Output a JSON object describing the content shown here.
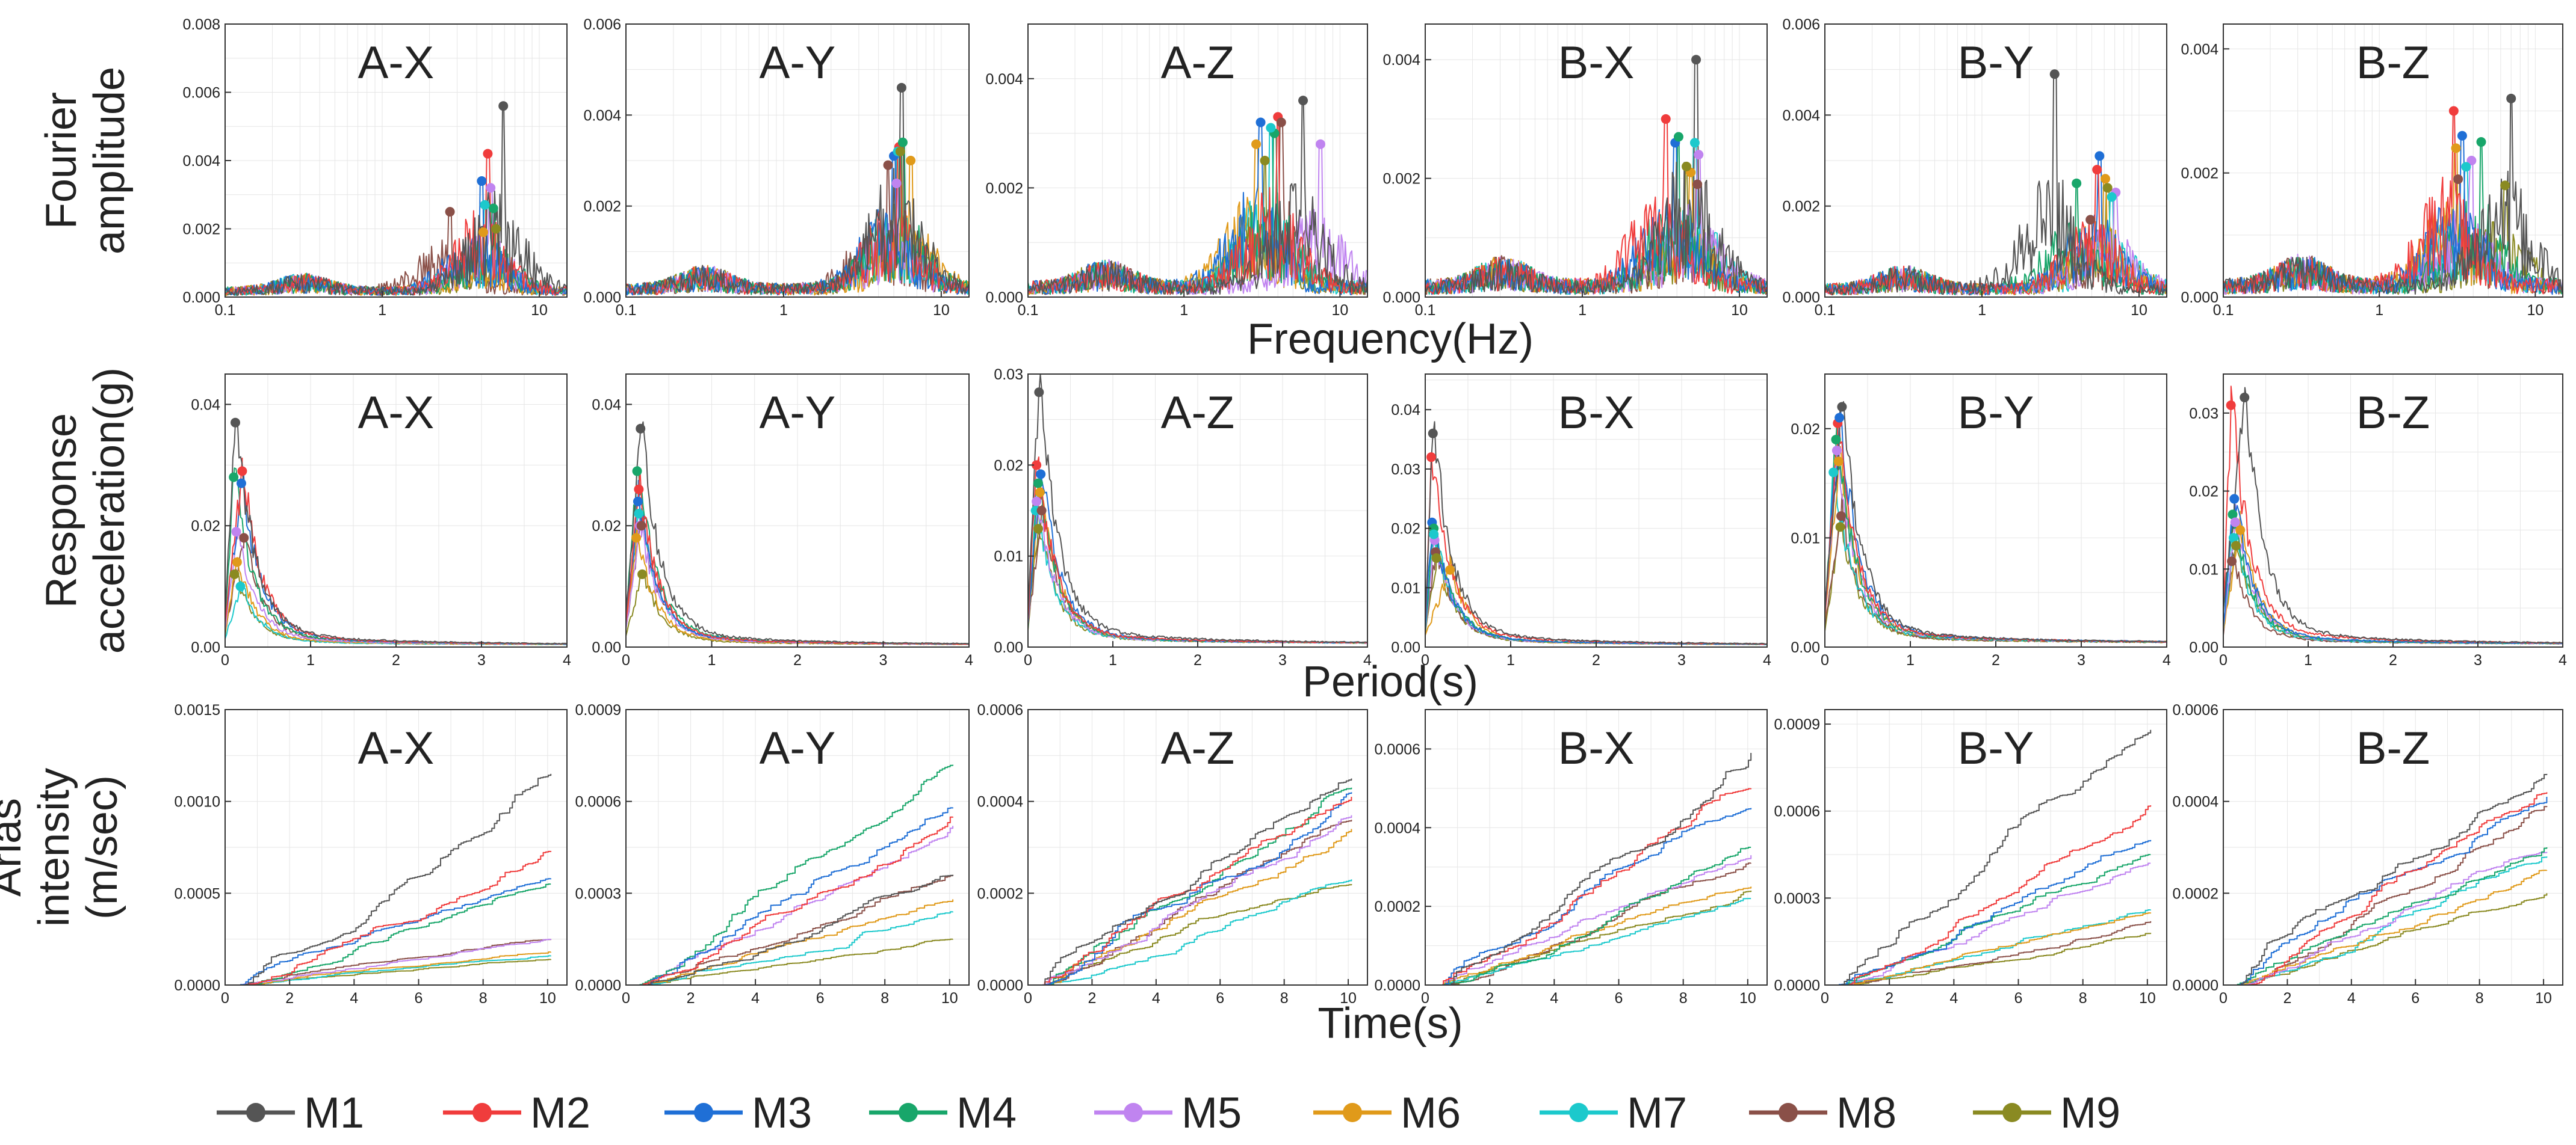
{
  "figure": {
    "panel_names": [
      "A-X",
      "A-Y",
      "A-Z",
      "B-X",
      "B-Y",
      "B-Z"
    ],
    "series_names": [
      "M1",
      "M2",
      "M3",
      "M4",
      "M5",
      "M6",
      "M7",
      "M8",
      "M9"
    ],
    "series_colors": [
      "#555555",
      "#f03c3c",
      "#1f6fd6",
      "#18a66a",
      "#c084f0",
      "#e09a1a",
      "#1cc9cc",
      "#8a5048",
      "#8a8a22"
    ]
  },
  "chart_data": [
    {
      "type": "line",
      "row_label": [
        "Fourier",
        "amplitude"
      ],
      "xlabel": "Frequency(Hz)",
      "xscale": "log",
      "xlim": [
        0.1,
        15
      ],
      "xticks": [
        0.1,
        1,
        10
      ],
      "xtick_labels": [
        "0.1",
        "1",
        "10"
      ],
      "panels": [
        {
          "name": "A-X",
          "ylim": [
            0,
            0.008
          ],
          "yticks": [
            "0.000",
            "0.002",
            "0.004",
            "0.006",
            "0.008"
          ],
          "peaks": [
            {
              "x": 5.9,
              "y": 0.0056
            },
            {
              "x": 4.7,
              "y": 0.0042
            },
            {
              "x": 4.3,
              "y": 0.0034
            },
            {
              "x": 5.1,
              "y": 0.0026
            },
            {
              "x": 4.9,
              "y": 0.0032
            },
            {
              "x": 4.4,
              "y": 0.0019
            },
            {
              "x": 4.5,
              "y": 0.0027
            },
            {
              "x": 2.7,
              "y": 0.0025
            },
            {
              "x": 5.3,
              "y": 0.002
            }
          ]
        },
        {
          "name": "A-Y",
          "ylim": [
            0,
            0.006
          ],
          "yticks": [
            "0.000",
            "0.002",
            "0.004",
            "0.006"
          ],
          "peaks": [
            {
              "x": 5.6,
              "y": 0.0046
            },
            {
              "x": 5.4,
              "y": 0.0033
            },
            {
              "x": 5.0,
              "y": 0.0031
            },
            {
              "x": 5.7,
              "y": 0.0034
            },
            {
              "x": 5.2,
              "y": 0.0025
            },
            {
              "x": 6.4,
              "y": 0.003
            },
            {
              "x": 5.3,
              "y": 0.0032
            },
            {
              "x": 4.6,
              "y": 0.0029
            },
            {
              "x": 5.5,
              "y": 0.0032
            }
          ]
        },
        {
          "name": "A-Z",
          "ylim": [
            0,
            0.005
          ],
          "yticks": [
            "0.000",
            "0.002",
            "0.004"
          ],
          "peaks": [
            {
              "x": 5.8,
              "y": 0.0036
            },
            {
              "x": 4.0,
              "y": 0.0033
            },
            {
              "x": 3.1,
              "y": 0.0032
            },
            {
              "x": 3.8,
              "y": 0.003
            },
            {
              "x": 7.5,
              "y": 0.0028
            },
            {
              "x": 2.9,
              "y": 0.0028
            },
            {
              "x": 3.6,
              "y": 0.0031
            },
            {
              "x": 4.2,
              "y": 0.0032
            },
            {
              "x": 3.3,
              "y": 0.0025
            }
          ]
        },
        {
          "name": "B-X",
          "ylim": [
            0,
            0.0046
          ],
          "yticks": [
            "0.000",
            "0.002",
            "0.004"
          ],
          "peaks": [
            {
              "x": 5.3,
              "y": 0.004
            },
            {
              "x": 3.4,
              "y": 0.003
            },
            {
              "x": 3.9,
              "y": 0.0026
            },
            {
              "x": 4.1,
              "y": 0.0027
            },
            {
              "x": 5.5,
              "y": 0.0024
            },
            {
              "x": 4.9,
              "y": 0.0021
            },
            {
              "x": 5.2,
              "y": 0.0026
            },
            {
              "x": 5.4,
              "y": 0.0019
            },
            {
              "x": 4.6,
              "y": 0.0022
            }
          ]
        },
        {
          "name": "B-Y",
          "ylim": [
            0,
            0.006
          ],
          "yticks": [
            "0.000",
            "0.002",
            "0.004",
            "0.006"
          ],
          "peaks": [
            {
              "x": 2.9,
              "y": 0.0049
            },
            {
              "x": 5.4,
              "y": 0.0028
            },
            {
              "x": 5.6,
              "y": 0.0031
            },
            {
              "x": 4.0,
              "y": 0.0025
            },
            {
              "x": 7.1,
              "y": 0.0023
            },
            {
              "x": 6.1,
              "y": 0.0026
            },
            {
              "x": 6.7,
              "y": 0.0022
            },
            {
              "x": 4.9,
              "y": 0.0017
            },
            {
              "x": 6.3,
              "y": 0.0024
            }
          ]
        },
        {
          "name": "B-Z",
          "ylim": [
            0,
            0.0044
          ],
          "yticks": [
            "0.000",
            "0.002",
            "0.004"
          ],
          "peaks": [
            {
              "x": 7.0,
              "y": 0.0032
            },
            {
              "x": 3.0,
              "y": 0.003
            },
            {
              "x": 3.4,
              "y": 0.0026
            },
            {
              "x": 4.5,
              "y": 0.0025
            },
            {
              "x": 3.9,
              "y": 0.0022
            },
            {
              "x": 3.1,
              "y": 0.0024
            },
            {
              "x": 3.6,
              "y": 0.0021
            },
            {
              "x": 3.2,
              "y": 0.0019
            },
            {
              "x": 6.4,
              "y": 0.0018
            }
          ]
        }
      ]
    },
    {
      "type": "line",
      "row_label": [
        "Response",
        "acceleration(g)"
      ],
      "xlabel": "Period(s)",
      "xscale": "linear",
      "xlim": [
        0,
        4
      ],
      "xticks": [
        0,
        1,
        2,
        3,
        4
      ],
      "xtick_labels": [
        "0",
        "1",
        "2",
        "3",
        "4"
      ],
      "panels": [
        {
          "name": "A-X",
          "ylim": [
            0,
            0.045
          ],
          "yticks": [
            "0.00",
            "0.02",
            "0.04"
          ],
          "peaks": [
            {
              "x": 0.12,
              "y": 0.037
            },
            {
              "x": 0.2,
              "y": 0.029
            },
            {
              "x": 0.19,
              "y": 0.027
            },
            {
              "x": 0.1,
              "y": 0.028
            },
            {
              "x": 0.13,
              "y": 0.019
            },
            {
              "x": 0.14,
              "y": 0.014
            },
            {
              "x": 0.18,
              "y": 0.01
            },
            {
              "x": 0.22,
              "y": 0.018
            },
            {
              "x": 0.11,
              "y": 0.012
            }
          ]
        },
        {
          "name": "A-Y",
          "ylim": [
            0,
            0.045
          ],
          "yticks": [
            "0.00",
            "0.02",
            "0.04"
          ],
          "peaks": [
            {
              "x": 0.17,
              "y": 0.036
            },
            {
              "x": 0.15,
              "y": 0.026
            },
            {
              "x": 0.14,
              "y": 0.024
            },
            {
              "x": 0.13,
              "y": 0.029
            },
            {
              "x": 0.16,
              "y": 0.02
            },
            {
              "x": 0.12,
              "y": 0.018
            },
            {
              "x": 0.15,
              "y": 0.022
            },
            {
              "x": 0.18,
              "y": 0.02
            },
            {
              "x": 0.19,
              "y": 0.012
            }
          ]
        },
        {
          "name": "A-Z",
          "ylim": [
            0,
            0.03
          ],
          "yticks": [
            "0.00",
            "0.01",
            "0.02",
            "0.03"
          ],
          "peaks": [
            {
              "x": 0.13,
              "y": 0.028
            },
            {
              "x": 0.1,
              "y": 0.02
            },
            {
              "x": 0.15,
              "y": 0.019
            },
            {
              "x": 0.12,
              "y": 0.018
            },
            {
              "x": 0.1,
              "y": 0.016
            },
            {
              "x": 0.14,
              "y": 0.017
            },
            {
              "x": 0.09,
              "y": 0.015
            },
            {
              "x": 0.16,
              "y": 0.015
            },
            {
              "x": 0.12,
              "y": 0.013
            }
          ]
        },
        {
          "name": "B-X",
          "ylim": [
            0,
            0.046
          ],
          "yticks": [
            "0.00",
            "0.01",
            "0.02",
            "0.03",
            "0.04"
          ],
          "peaks": [
            {
              "x": 0.09,
              "y": 0.036
            },
            {
              "x": 0.07,
              "y": 0.032
            },
            {
              "x": 0.08,
              "y": 0.021
            },
            {
              "x": 0.1,
              "y": 0.02
            },
            {
              "x": 0.11,
              "y": 0.018
            },
            {
              "x": 0.29,
              "y": 0.013
            },
            {
              "x": 0.1,
              "y": 0.019
            },
            {
              "x": 0.12,
              "y": 0.016
            },
            {
              "x": 0.13,
              "y": 0.015
            }
          ]
        },
        {
          "name": "B-Y",
          "ylim": [
            0,
            0.025
          ],
          "yticks": [
            "0.00",
            "0.01",
            "0.02"
          ],
          "peaks": [
            {
              "x": 0.2,
              "y": 0.022
            },
            {
              "x": 0.15,
              "y": 0.0205
            },
            {
              "x": 0.17,
              "y": 0.021
            },
            {
              "x": 0.13,
              "y": 0.019
            },
            {
              "x": 0.14,
              "y": 0.018
            },
            {
              "x": 0.16,
              "y": 0.017
            },
            {
              "x": 0.1,
              "y": 0.016
            },
            {
              "x": 0.19,
              "y": 0.012
            },
            {
              "x": 0.18,
              "y": 0.011
            }
          ]
        },
        {
          "name": "B-Z",
          "ylim": [
            0,
            0.035
          ],
          "yticks": [
            "0.00",
            "0.01",
            "0.02",
            "0.03"
          ],
          "peaks": [
            {
              "x": 0.25,
              "y": 0.032
            },
            {
              "x": 0.09,
              "y": 0.031
            },
            {
              "x": 0.13,
              "y": 0.019
            },
            {
              "x": 0.11,
              "y": 0.017
            },
            {
              "x": 0.14,
              "y": 0.016
            },
            {
              "x": 0.2,
              "y": 0.015
            },
            {
              "x": 0.12,
              "y": 0.014
            },
            {
              "x": 0.1,
              "y": 0.011
            },
            {
              "x": 0.15,
              "y": 0.013
            }
          ]
        }
      ]
    },
    {
      "type": "line",
      "row_label": [
        "Arias",
        "intensity",
        "(m/sec)"
      ],
      "xlabel": "Time(s)",
      "xscale": "linear",
      "xlim": [
        0,
        10.6
      ],
      "xticks": [
        0,
        2,
        4,
        6,
        8,
        10
      ],
      "xtick_labels": [
        "0",
        "2",
        "4",
        "6",
        "8",
        "10"
      ],
      "panels": [
        {
          "name": "A-X",
          "ylim": [
            0,
            0.0015
          ],
          "yticks": [
            "0.0000",
            "0.0005",
            "0.0010",
            "0.0015"
          ],
          "final_values": [
            0.00115,
            0.00073,
            0.00058,
            0.00055,
            0.00025,
            0.00018,
            0.00016,
            0.00025,
            0.00014
          ]
        },
        {
          "name": "A-Y",
          "ylim": [
            0,
            0.0009
          ],
          "yticks": [
            "0.0000",
            "0.0003",
            "0.0006",
            "0.0009"
          ],
          "final_values": [
            0.00036,
            0.00055,
            0.00058,
            0.00072,
            0.00052,
            0.00028,
            0.00024,
            0.00036,
            0.00015
          ]
        },
        {
          "name": "A-Z",
          "ylim": [
            0,
            0.0006
          ],
          "yticks": [
            "0.0000",
            "0.0002",
            "0.0004",
            "0.0006"
          ],
          "final_values": [
            0.00045,
            0.00041,
            0.00042,
            0.00043,
            0.00037,
            0.00034,
            0.00023,
            0.00036,
            0.00022
          ]
        },
        {
          "name": "B-X",
          "ylim": [
            0,
            0.0007
          ],
          "yticks": [
            "0.0000",
            "0.0002",
            "0.0004",
            "0.0006"
          ],
          "final_values": [
            0.00059,
            0.0005,
            0.00045,
            0.00035,
            0.00033,
            0.00025,
            0.00022,
            0.00031,
            0.00024
          ]
        },
        {
          "name": "B-Y",
          "ylim": [
            0,
            0.00095
          ],
          "yticks": [
            "0.0000",
            "0.0003",
            "0.0006",
            "0.0009"
          ],
          "final_values": [
            0.00088,
            0.00062,
            0.0005,
            0.00045,
            0.00042,
            0.00025,
            0.00026,
            0.00022,
            0.00018
          ]
        },
        {
          "name": "B-Z",
          "ylim": [
            0,
            0.0006
          ],
          "yticks": [
            "0.0000",
            "0.0002",
            "0.0004",
            "0.0006"
          ],
          "final_values": [
            0.00046,
            0.00042,
            0.00041,
            0.0003,
            0.00029,
            0.00025,
            0.00028,
            0.00039,
            0.0002
          ]
        }
      ]
    }
  ]
}
